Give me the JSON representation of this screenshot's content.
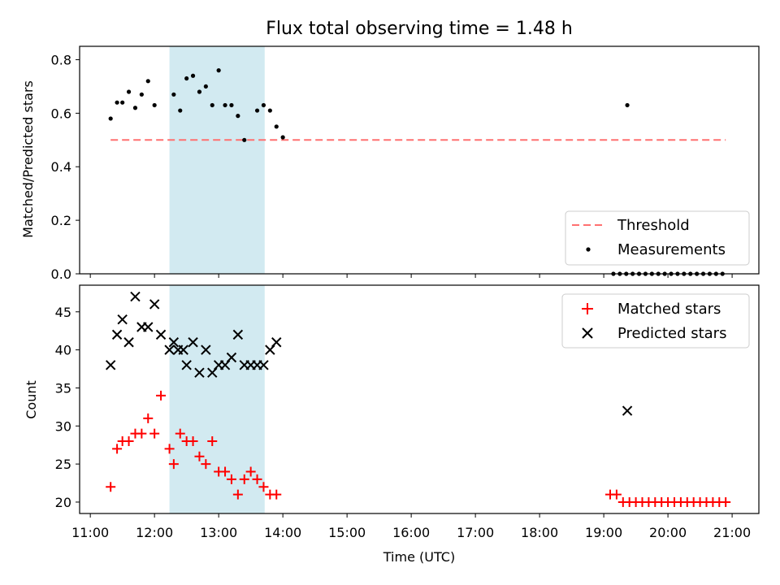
{
  "chart_data": [
    {
      "type": "scatter",
      "title": "Flux total observing time = 1.48 h",
      "xlabel": "",
      "ylabel": "Matched/Predicted stars",
      "xlim": [
        "10:50",
        "21:25"
      ],
      "ylim": [
        0,
        0.85
      ],
      "y_ticks": [
        0.0,
        0.2,
        0.4,
        0.6,
        0.8
      ],
      "y_tick_labels": [
        "0.0",
        "0.2",
        "0.4",
        "0.6",
        "0.8"
      ],
      "legend": {
        "placement": "lower-right",
        "entries": [
          "Threshold",
          "Measurements"
        ]
      },
      "highlight_span": {
        "x0": "12:14",
        "x1": "13:43",
        "color": "#add8e6"
      },
      "threshold": {
        "name": "Threshold",
        "y": 0.5,
        "x0": "11:19",
        "x1": "20:54",
        "color": "#ff7070"
      },
      "series": [
        {
          "name": "Measurements",
          "color": "#000000",
          "x": [
            "11:19",
            "11:25",
            "11:30",
            "11:36",
            "11:42",
            "11:48",
            "11:54",
            "12:00",
            "12:18",
            "12:24",
            "12:30",
            "12:36",
            "12:42",
            "12:48",
            "12:54",
            "13:00",
            "13:06",
            "13:12",
            "13:18",
            "13:24",
            "13:36",
            "13:42",
            "13:48",
            "13:54",
            "14:00",
            "19:22",
            "19:09",
            "19:15",
            "19:21",
            "19:27",
            "19:33",
            "19:39",
            "19:45",
            "19:51",
            "19:57",
            "20:03",
            "20:09",
            "20:15",
            "20:21",
            "20:27",
            "20:33",
            "20:39",
            "20:45",
            "20:51"
          ],
          "y": [
            0.58,
            0.64,
            0.64,
            0.68,
            0.62,
            0.67,
            0.72,
            0.63,
            0.67,
            0.61,
            0.73,
            0.74,
            0.68,
            0.7,
            0.63,
            0.76,
            0.63,
            0.63,
            0.59,
            0.5,
            0.61,
            0.63,
            0.61,
            0.55,
            0.51,
            0.63,
            0.0,
            0.0,
            0.0,
            0.0,
            0.0,
            0.0,
            0.0,
            0.0,
            0.0,
            0.0,
            0.0,
            0.0,
            0.0,
            0.0,
            0.0,
            0.0,
            0.0,
            0.0
          ]
        }
      ]
    },
    {
      "type": "scatter",
      "title": "",
      "xlabel": "Time (UTC)",
      "ylabel": "Count",
      "xlim": [
        "10:50",
        "21:25"
      ],
      "ylim": [
        18.5,
        48.5
      ],
      "y_ticks": [
        20,
        25,
        30,
        35,
        40,
        45
      ],
      "y_tick_labels": [
        "20",
        "25",
        "30",
        "35",
        "40",
        "45"
      ],
      "x_ticks": [
        "11:00",
        "12:00",
        "13:00",
        "14:00",
        "15:00",
        "16:00",
        "17:00",
        "18:00",
        "19:00",
        "20:00",
        "21:00"
      ],
      "legend": {
        "placement": "upper-right",
        "entries": [
          "Matched stars",
          "Predicted stars"
        ]
      },
      "highlight_span": {
        "x0": "12:14",
        "x1": "13:43",
        "color": "#add8e6"
      },
      "series": [
        {
          "name": "Matched stars",
          "marker": "+",
          "color": "#ff0000",
          "x": [
            "11:19",
            "11:25",
            "11:30",
            "11:36",
            "11:42",
            "11:48",
            "11:54",
            "12:00",
            "12:06",
            "12:14",
            "12:18",
            "12:24",
            "12:30",
            "12:36",
            "12:42",
            "12:48",
            "12:54",
            "13:00",
            "13:06",
            "13:12",
            "13:18",
            "13:24",
            "13:30",
            "13:36",
            "13:42",
            "13:48",
            "13:54",
            "19:06",
            "19:12",
            "19:18",
            "19:24",
            "19:30",
            "19:36",
            "19:42",
            "19:48",
            "19:54",
            "20:00",
            "20:06",
            "20:12",
            "20:18",
            "20:24",
            "20:30",
            "20:36",
            "20:42",
            "20:48",
            "20:54"
          ],
          "y": [
            22,
            27,
            28,
            28,
            29,
            29,
            31,
            29,
            34,
            27,
            25,
            29,
            28,
            28,
            26,
            25,
            28,
            24,
            24,
            23,
            21,
            23,
            24,
            23,
            22,
            21,
            21,
            21,
            21,
            20,
            20,
            20,
            20,
            20,
            20,
            20,
            20,
            20,
            20,
            20,
            20,
            20,
            20,
            20,
            20,
            20
          ]
        },
        {
          "name": "Predicted stars",
          "marker": "x",
          "color": "#000000",
          "x": [
            "11:19",
            "11:25",
            "11:30",
            "11:36",
            "11:42",
            "11:48",
            "11:54",
            "12:00",
            "12:06",
            "12:14",
            "12:18",
            "12:22",
            "12:27",
            "12:30",
            "12:36",
            "12:42",
            "12:48",
            "12:54",
            "13:00",
            "13:06",
            "13:12",
            "13:18",
            "13:24",
            "13:30",
            "13:36",
            "13:42",
            "13:48",
            "13:54",
            "19:22"
          ],
          "y": [
            38,
            42,
            44,
            41,
            47,
            43,
            43,
            46,
            42,
            40,
            41,
            40,
            40,
            38,
            41,
            37,
            40,
            37,
            38,
            38,
            39,
            42,
            38,
            38,
            38,
            38,
            40,
            41,
            32
          ]
        }
      ]
    }
  ]
}
